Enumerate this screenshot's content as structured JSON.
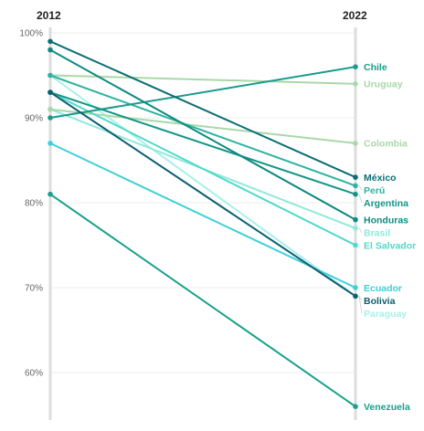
{
  "chart_data": {
    "type": "slope",
    "title": "",
    "x": [
      "2012",
      "2022"
    ],
    "ylim": [
      55,
      100
    ],
    "yticks": [
      {
        "value": 60,
        "label": "60%"
      },
      {
        "value": 70,
        "label": "70%"
      },
      {
        "value": 80,
        "label": "80%"
      },
      {
        "value": 90,
        "label": "90%"
      },
      {
        "value": 100,
        "label": "100%"
      }
    ],
    "grid": true,
    "series": [
      {
        "name": "Chile",
        "values": [
          90,
          96
        ],
        "color": "#1a9a8c"
      },
      {
        "name": "Uruguay",
        "values": [
          95,
          94
        ],
        "color": "#a8d8a8"
      },
      {
        "name": "Colombia",
        "values": [
          91,
          87
        ],
        "color": "#a8d8a8"
      },
      {
        "name": "México",
        "values": [
          99,
          83
        ],
        "color": "#0b6e74"
      },
      {
        "name": "Perú",
        "values": [
          95,
          82
        ],
        "color": "#2fb3a0"
      },
      {
        "name": "Argentina",
        "values": [
          93,
          81
        ],
        "color": "#139586"
      },
      {
        "name": "Honduras",
        "values": [
          98,
          78
        ],
        "color": "#0f8a80"
      },
      {
        "name": "Brasil",
        "values": [
          91,
          77
        ],
        "color": "#8fe8dc"
      },
      {
        "name": "El Salvador",
        "values": [
          93,
          75
        ],
        "color": "#4fd9c8"
      },
      {
        "name": "Ecuador",
        "values": [
          87,
          70
        ],
        "color": "#3cd0d8"
      },
      {
        "name": "Bolivia",
        "values": [
          93,
          69
        ],
        "color": "#0c5f70"
      },
      {
        "name": "Paraguay",
        "values": [
          95,
          69
        ],
        "color": "#a8f0ea"
      },
      {
        "name": "Venezuela",
        "values": [
          81,
          56
        ],
        "color": "#17a08c"
      }
    ]
  }
}
